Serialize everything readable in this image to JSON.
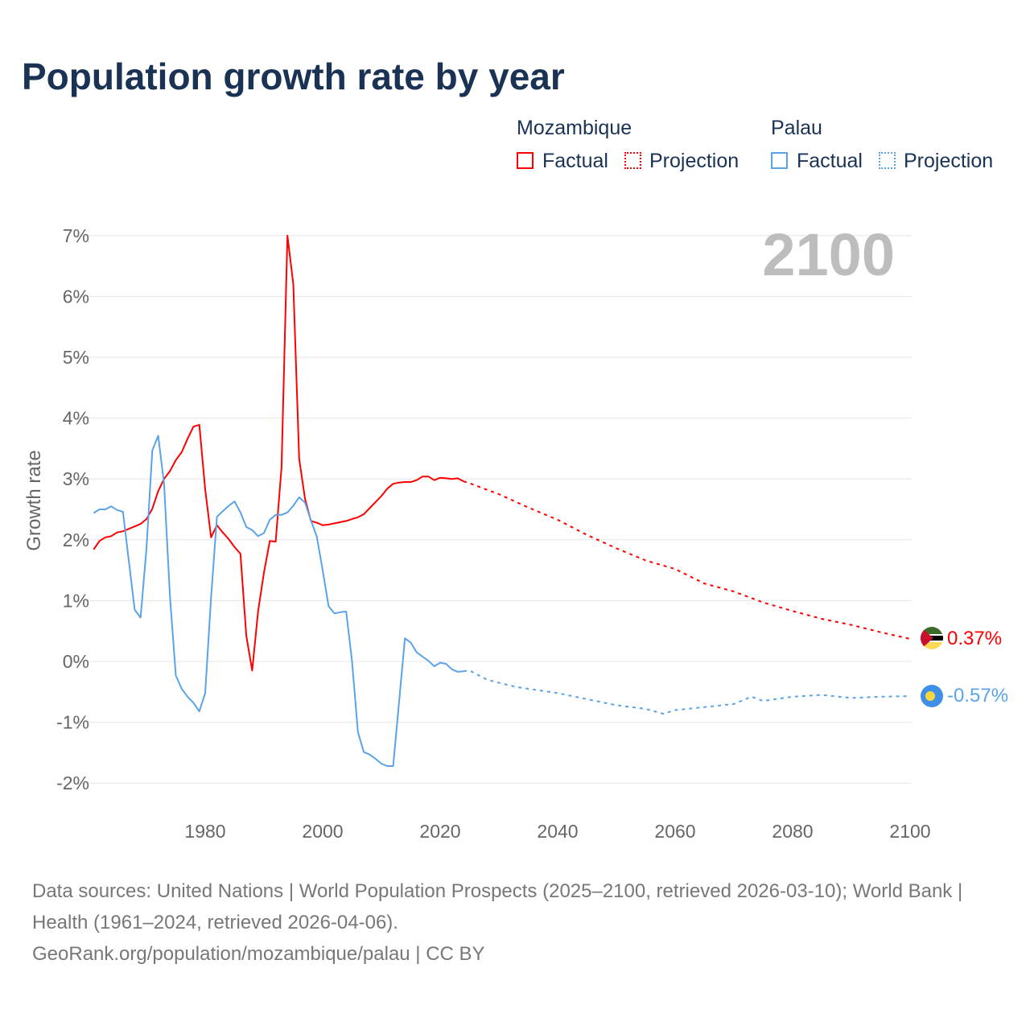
{
  "title": "Population growth rate by year",
  "legend": {
    "groups": [
      {
        "name": "Mozambique",
        "factual": "Factual",
        "projection": "Projection",
        "color": "#ff0000"
      },
      {
        "name": "Palau",
        "factual": "Factual",
        "projection": "Projection",
        "color": "#5ba3e8"
      }
    ]
  },
  "current_year": "2100",
  "end_labels": {
    "mozambique": "0.37%",
    "palau": "-0.57%"
  },
  "source": {
    "line1": "Data sources: United Nations | World Population Prospects (2025–2100, retrieved 2026-03-10); World Bank | Health (1961–2024, retrieved 2026-04-06).",
    "line2": "GeoRank.org/population/mozambique/palau | CC BY"
  },
  "chart_data": {
    "type": "line",
    "title": "Population growth rate by year",
    "xlabel": "",
    "ylabel": "Growth rate",
    "xlim": [
      1961,
      2100
    ],
    "ylim": [
      -2,
      7
    ],
    "xticks": [
      "1980",
      "2000",
      "2020",
      "2040",
      "2060",
      "2080",
      "2100"
    ],
    "yticks": [
      "-2%",
      "-1%",
      "0%",
      "1%",
      "2%",
      "3%",
      "4%",
      "5%",
      "6%",
      "7%"
    ],
    "series": [
      {
        "name": "Mozambique Factual",
        "color": "#ff0000",
        "dash": false,
        "x": [
          1961,
          1962,
          1963,
          1964,
          1965,
          1966,
          1967,
          1968,
          1969,
          1970,
          1971,
          1972,
          1973,
          1974,
          1975,
          1976,
          1977,
          1978,
          1979,
          1980,
          1981,
          1982,
          1983,
          1984,
          1985,
          1986,
          1987,
          1988,
          1989,
          1990,
          1991,
          1992,
          1993,
          1994,
          1995,
          1996,
          1997,
          1998,
          1999,
          2000,
          2001,
          2002,
          2003,
          2004,
          2005,
          2006,
          2007,
          2008,
          2009,
          2010,
          2011,
          2012,
          2013,
          2014,
          2015,
          2016,
          2017,
          2018,
          2019,
          2020,
          2021,
          2022,
          2023,
          2024
        ],
        "y": [
          1.84,
          1.98,
          2.04,
          2.06,
          2.12,
          2.14,
          2.18,
          2.22,
          2.26,
          2.34,
          2.51,
          2.8,
          3.0,
          3.13,
          3.31,
          3.44,
          3.66,
          3.86,
          3.89,
          2.83,
          2.04,
          2.24,
          2.12,
          2.01,
          1.88,
          1.77,
          0.42,
          -0.15,
          0.82,
          1.46,
          1.98,
          1.97,
          3.2,
          7.0,
          6.2,
          3.33,
          2.67,
          2.31,
          2.28,
          2.24,
          2.25,
          2.27,
          2.29,
          2.31,
          2.34,
          2.37,
          2.42,
          2.52,
          2.62,
          2.72,
          2.84,
          2.92,
          2.94,
          2.95,
          2.95,
          2.98,
          3.04,
          3.04,
          2.98,
          3.02,
          3.01,
          3.0,
          3.01,
          2.96
        ]
      },
      {
        "name": "Mozambique Projection",
        "color": "#ff0000",
        "dash": true,
        "x": [
          2024,
          2025,
          2030,
          2035,
          2040,
          2045,
          2050,
          2055,
          2060,
          2065,
          2070,
          2075,
          2080,
          2085,
          2090,
          2095,
          2100
        ],
        "y": [
          2.96,
          2.93,
          2.75,
          2.53,
          2.33,
          2.08,
          1.86,
          1.66,
          1.52,
          1.28,
          1.15,
          0.97,
          0.83,
          0.7,
          0.6,
          0.48,
          0.37
        ]
      },
      {
        "name": "Palau Factual",
        "color": "#5ba3e8",
        "dash": false,
        "x": [
          1961,
          1962,
          1963,
          1964,
          1965,
          1966,
          1967,
          1968,
          1969,
          1970,
          1971,
          1972,
          1973,
          1974,
          1975,
          1976,
          1977,
          1978,
          1979,
          1980,
          1981,
          1982,
          1983,
          1984,
          1985,
          1986,
          1987,
          1988,
          1989,
          1990,
          1991,
          1992,
          1993,
          1994,
          1995,
          1996,
          1997,
          1998,
          1999,
          2000,
          2001,
          2002,
          2003,
          2004,
          2005,
          2006,
          2007,
          2008,
          2009,
          2010,
          2011,
          2012,
          2013,
          2014,
          2015,
          2016,
          2017,
          2018,
          2019,
          2020,
          2021,
          2022,
          2023,
          2024
        ],
        "y": [
          2.44,
          2.5,
          2.5,
          2.55,
          2.49,
          2.46,
          1.65,
          0.85,
          0.72,
          1.85,
          3.47,
          3.71,
          2.92,
          1.07,
          -0.23,
          -0.45,
          -0.58,
          -0.68,
          -0.82,
          -0.52,
          1.05,
          2.38,
          2.47,
          2.56,
          2.63,
          2.45,
          2.21,
          2.16,
          2.06,
          2.11,
          2.33,
          2.41,
          2.41,
          2.45,
          2.56,
          2.7,
          2.61,
          2.32,
          2.05,
          1.5,
          0.91,
          0.79,
          0.81,
          0.82,
          0.0,
          -1.16,
          -1.49,
          -1.53,
          -1.6,
          -1.68,
          -1.72,
          -1.72,
          -0.67,
          0.38,
          0.31,
          0.15,
          0.08,
          0.01,
          -0.08,
          -0.02,
          -0.04,
          -0.13,
          -0.17,
          -0.16
        ]
      },
      {
        "name": "Palau Projection",
        "color": "#5ba3e8",
        "dash": true,
        "x": [
          2024,
          2025,
          2028,
          2030,
          2033,
          2035,
          2040,
          2045,
          2050,
          2055,
          2058,
          2060,
          2065,
          2070,
          2073,
          2075,
          2080,
          2085,
          2090,
          2095,
          2100
        ],
        "y": [
          -0.16,
          -0.15,
          -0.3,
          -0.35,
          -0.42,
          -0.45,
          -0.52,
          -0.62,
          -0.72,
          -0.78,
          -0.86,
          -0.8,
          -0.75,
          -0.7,
          -0.58,
          -0.65,
          -0.58,
          -0.55,
          -0.6,
          -0.58,
          -0.57
        ]
      }
    ]
  }
}
